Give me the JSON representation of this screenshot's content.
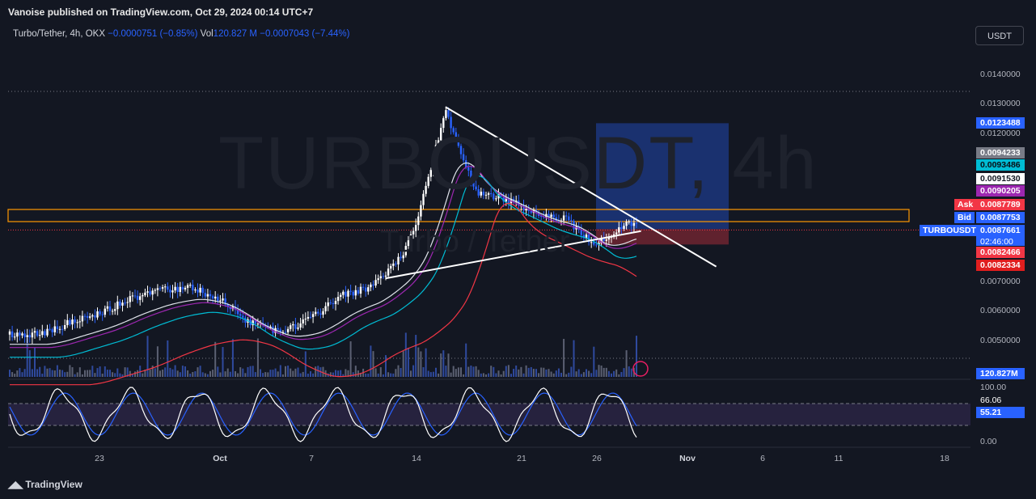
{
  "header": {
    "publisher_text": "Vanoise published on TradingView.com, Oct 29, 2024 00:14 UTC+7"
  },
  "legend": {
    "symbol": "Turbo/Tether, 4h, OKX",
    "change": "−0.0000751 (−0.85%)",
    "vol_label": "Vol",
    "vol_value": "120.827 M",
    "vol_change": "−0.0007043 (−7.44%)"
  },
  "watermark": {
    "title": "TURBOUSDT, 4h",
    "subtitle": "Turbo / Tether"
  },
  "currency_button": "USDT",
  "price_axis": {
    "ticks": [
      "0.0140000",
      "0.0130000",
      "0.0120000",
      "0.0070000",
      "0.0060000",
      "0.0050000"
    ]
  },
  "price_tags": {
    "target": "0.0123488",
    "tag_gray": "0.0094233",
    "tag_teal": "0.0093486",
    "tag_white": "0.0091530",
    "tag_purple": "0.0090205",
    "ask_label": "Ask",
    "ask_value": "0.0087789",
    "bid_label": "Bid",
    "bid_value": "0.0087753",
    "symbol_tag": "TURBOUSDT",
    "last_price": "0.0087661",
    "countdown": "02:46:00",
    "stop_value": "0.0082466",
    "ma_red": "0.0082334",
    "volume": "120.827M"
  },
  "oscillator": {
    "ticks": [
      "100.00",
      "0.00"
    ],
    "k_value": "66.06",
    "d_value": "55.21"
  },
  "time_axis": {
    "labels": [
      "23",
      "Oct",
      "7",
      "14",
      "21",
      "26",
      "Nov",
      "6",
      "11",
      "18"
    ]
  },
  "footer": {
    "brand": "TradingView"
  },
  "colors": {
    "background": "#131722",
    "up": "#ffffff",
    "down": "#2962ff",
    "ema_white": "#e0e3eb",
    "ema_purple": "#9c27b0",
    "ema_teal": "#00bcd4",
    "ema_red": "#f23645",
    "zone": "#ff9800",
    "target_box": "#2962ff",
    "stop_box": "#f23645"
  },
  "chart_data": {
    "type": "candlestick",
    "symbol": "TURBOUSDT",
    "timeframe": "4h",
    "price_range": [
      0.0044,
      0.0147
    ],
    "key_levels": {
      "resistance_zone": [
        0.0087,
        0.0089
      ],
      "entry": 0.0087661,
      "target": 0.0123488,
      "stop": 0.0082466
    },
    "trendlines": [
      {
        "name": "descending resistance",
        "from": [
          "Oct 16",
          0.0129
        ],
        "to": [
          "Nov 3",
          0.0075
        ]
      },
      {
        "name": "ascending support",
        "from": [
          "Oct 12",
          0.0071
        ],
        "to": [
          "Oct 29",
          0.0087
        ]
      }
    ],
    "close_path": [
      [
        "Sep 19",
        0.0052
      ],
      [
        "Sep 21",
        0.0056
      ],
      [
        "Sep 23",
        0.0059
      ],
      [
        "Sep 25",
        0.0064
      ],
      [
        "Sep 27",
        0.0067
      ],
      [
        "Sep 29",
        0.0068
      ],
      [
        "Oct 1",
        0.0064
      ],
      [
        "Oct 3",
        0.0056
      ],
      [
        "Oct 5",
        0.0053
      ],
      [
        "Oct 7",
        0.0057
      ],
      [
        "Oct 9",
        0.0065
      ],
      [
        "Oct 11",
        0.0068
      ],
      [
        "Oct 13",
        0.0078
      ],
      [
        "Oct 14",
        0.0088
      ],
      [
        "Oct 16",
        0.0128
      ],
      [
        "Oct 18",
        0.01
      ],
      [
        "Oct 20",
        0.0098
      ],
      [
        "Oct 22",
        0.0093
      ],
      [
        "Oct 24",
        0.0091
      ],
      [
        "Oct 26",
        0.0082
      ],
      [
        "Oct 28",
        0.009
      ],
      [
        "Oct 29",
        0.0087661
      ]
    ]
  }
}
